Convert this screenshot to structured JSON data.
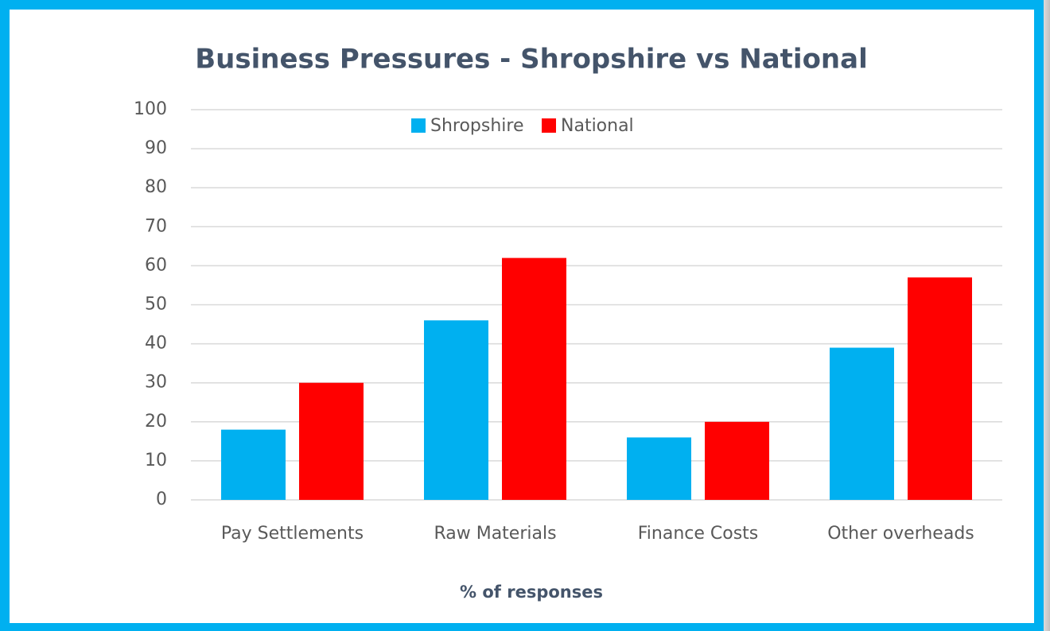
{
  "chart_data": {
    "type": "bar",
    "title": "Business Pressures - Shropshire vs National",
    "x_label": "% of responses",
    "categories": [
      "Pay Settlements",
      "Raw Materials",
      "Finance Costs",
      "Other overheads"
    ],
    "series": [
      {
        "name": "Shropshire",
        "color": "#00b0f0",
        "values": [
          18,
          46,
          16,
          39
        ]
      },
      {
        "name": "National",
        "color": "#ff0000",
        "values": [
          30,
          62,
          20,
          57
        ]
      }
    ],
    "ylim": [
      0,
      100
    ],
    "yticks": [
      0,
      10,
      20,
      30,
      40,
      50,
      60,
      70,
      80,
      90,
      100
    ],
    "grid": true,
    "legend": "top"
  }
}
